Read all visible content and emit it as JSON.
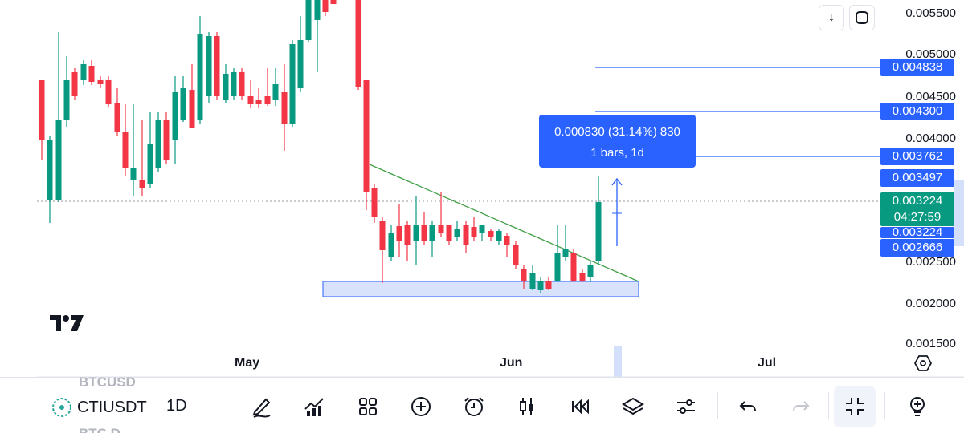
{
  "chart": {
    "symbol": "CTIUSDT",
    "interval": "1D",
    "logo": "TV",
    "colors": {
      "up": "#089981",
      "down": "#f23645",
      "accent": "#2962ff",
      "trend": "#43a047"
    }
  },
  "price_axis": {
    "labels": [
      "0.005500",
      "0.005000",
      "0.004500",
      "0.004000",
      "0.002500",
      "0.002000",
      "0.001500"
    ]
  },
  "price_tags": [
    {
      "value": "0.004838",
      "color": "blue"
    },
    {
      "value": "0.004300",
      "color": "blue"
    },
    {
      "value": "0.003762",
      "color": "blue"
    },
    {
      "value": "0.003497",
      "color": "blue"
    },
    {
      "value": "0.003224",
      "color": "green"
    },
    {
      "value": "04:27:59",
      "color": "green"
    },
    {
      "value": "0.003224",
      "color": "blue"
    },
    {
      "value": "0.002666",
      "color": "blue"
    }
  ],
  "measure": {
    "line1": "0.000830 (31.14%) 830",
    "line2": "1 bars, 1d"
  },
  "time_axis": {
    "labels": [
      "May",
      "Jun",
      "Jul"
    ]
  },
  "top_buttons": {
    "download_icon": "arrow-down-icon",
    "fullscreen_icon": "frame-icon"
  },
  "toolbar": {
    "ghost_above": "BTCUSD",
    "ghost_below": "BTC.D",
    "icons": [
      "pencil-icon",
      "indicators-icon",
      "grid-icon",
      "plus-circle-icon",
      "alarm-icon",
      "candles-icon",
      "replay-icon",
      "layers-icon",
      "settings-sliders-icon",
      "undo-icon",
      "redo-icon",
      "collapse-icon",
      "lightbulb-icon"
    ]
  }
}
